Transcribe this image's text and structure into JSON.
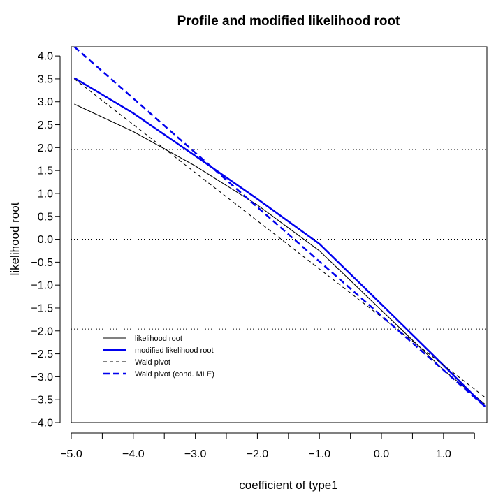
{
  "chart_data": {
    "type": "line",
    "title": "Profile and modified likelihood root",
    "xlabel": "coefficient of type1",
    "ylabel": "likelihood root",
    "xlim": [
      -5.0,
      1.7
    ],
    "ylim": [
      -4.0,
      4.2
    ],
    "x_ticks": [
      -5.0,
      -4.5,
      -4.0,
      -3.5,
      -3.0,
      -2.5,
      -2.0,
      -1.5,
      -1.0,
      -0.5,
      0.0,
      0.5,
      1.0,
      1.5
    ],
    "x_tick_labels": [
      "−5.0",
      "",
      "−4.0",
      "",
      "−3.0",
      "",
      "−2.0",
      "",
      "−1.0",
      "",
      "0.0",
      "",
      "1.0",
      ""
    ],
    "y_ticks": [
      -4.0,
      -3.5,
      -3.0,
      -2.5,
      -2.0,
      -1.5,
      -1.0,
      -0.5,
      0.0,
      0.5,
      1.0,
      1.5,
      2.0,
      2.5,
      3.0,
      3.5,
      4.0
    ],
    "y_tick_labels": [
      "−4.0",
      "−3.5",
      "−3.0",
      "−2.5",
      "−2.0",
      "−1.5",
      "−1.0",
      "−0.5",
      "0.0",
      "0.5",
      "1.0",
      "1.5",
      "2.0",
      "2.5",
      "3.0",
      "3.5",
      "4.0"
    ],
    "reference_lines": [
      1.96,
      0.0,
      -1.96
    ],
    "legend_position": "bottom-left",
    "series": [
      {
        "name": "likelihood root",
        "color": "#000000",
        "style": "solid",
        "x": [
          -4.95,
          -4.0,
          -3.0,
          -2.0,
          -1.0,
          0.0,
          1.0,
          1.67
        ],
        "y": [
          2.95,
          2.35,
          1.6,
          0.75,
          -0.25,
          -1.55,
          -2.85,
          -3.6
        ]
      },
      {
        "name": "modified likelihood root",
        "color": "#0000ee",
        "style": "solid",
        "x": [
          -4.95,
          -4.0,
          -3.0,
          -2.0,
          -1.0,
          0.0,
          1.0,
          1.67
        ],
        "y": [
          3.52,
          2.75,
          1.82,
          0.88,
          -0.1,
          -1.42,
          -2.75,
          -3.65
        ]
      },
      {
        "name": "Wald pivot",
        "color": "#000000",
        "style": "dashed",
        "x": [
          -4.95,
          1.67
        ],
        "y": [
          3.5,
          -3.45
        ]
      },
      {
        "name": "Wald pivot (cond. MLE)",
        "color": "#0000ee",
        "style": "dashed",
        "x": [
          -4.95,
          1.67
        ],
        "y": [
          4.2,
          -3.65
        ]
      }
    ]
  }
}
